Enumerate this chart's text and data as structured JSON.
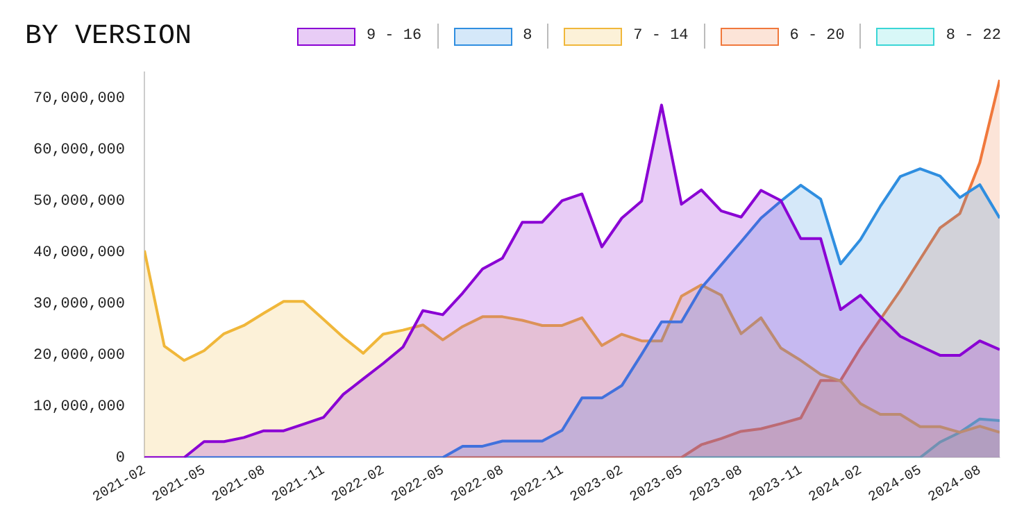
{
  "chart_data": {
    "type": "area",
    "title": "BY VERSION",
    "x": [
      "2021-02",
      "2021-03",
      "2021-04",
      "2021-05",
      "2021-06",
      "2021-07",
      "2021-08",
      "2021-09",
      "2021-10",
      "2021-11",
      "2021-12",
      "2022-01",
      "2022-02",
      "2022-03",
      "2022-04",
      "2022-05",
      "2022-06",
      "2022-07",
      "2022-08",
      "2022-09",
      "2022-10",
      "2022-11",
      "2022-12",
      "2023-01",
      "2023-02",
      "2023-03",
      "2023-04",
      "2023-05",
      "2023-06",
      "2023-07",
      "2023-08",
      "2023-09",
      "2023-10",
      "2023-11",
      "2023-12",
      "2024-01",
      "2024-02",
      "2024-03",
      "2024-04",
      "2024-05",
      "2024-06",
      "2024-07",
      "2024-08",
      "2024-09"
    ],
    "series": [
      {
        "name": "9 - 16",
        "color": "#8a00d4",
        "values": [
          0,
          0,
          0,
          3100000,
          3100000,
          3900000,
          5200000,
          5200000,
          6500000,
          7800000,
          12300000,
          15300000,
          18300000,
          21500000,
          28600000,
          27800000,
          32000000,
          36700000,
          38800000,
          45800000,
          45800000,
          50000000,
          51300000,
          41000000,
          46600000,
          49900000,
          68600000,
          49300000,
          52100000,
          48000000,
          46800000,
          52000000,
          50000000,
          42600000,
          42600000,
          28800000,
          31600000,
          27400000,
          23600000,
          21700000,
          19900000,
          19900000,
          22700000,
          21000000
        ]
      },
      {
        "name": "8",
        "color": "#2f8ee0",
        "values": [
          null,
          null,
          0,
          0,
          0,
          0,
          0,
          0,
          0,
          0,
          0,
          0,
          0,
          0,
          0,
          0,
          2200000,
          2200000,
          3200000,
          3200000,
          3200000,
          5300000,
          11600000,
          11600000,
          14000000,
          20100000,
          26400000,
          26400000,
          33000000,
          37500000,
          42000000,
          46600000,
          49900000,
          53000000,
          50300000,
          37700000,
          42400000,
          48900000,
          54700000,
          56200000,
          54800000,
          50600000,
          53100000,
          46600000
        ]
      },
      {
        "name": "7 - 14",
        "color": "#f0b73a",
        "values": [
          40300000,
          21700000,
          18900000,
          20800000,
          24100000,
          25700000,
          28100000,
          30400000,
          30400000,
          26900000,
          23400000,
          20300000,
          24000000,
          24800000,
          25800000,
          22900000,
          25500000,
          27400000,
          27400000,
          26700000,
          25700000,
          25700000,
          27200000,
          21800000,
          24000000,
          22700000,
          22700000,
          31400000,
          33600000,
          31600000,
          24100000,
          27200000,
          21300000,
          18900000,
          16200000,
          14900000,
          10500000,
          8400000,
          8400000,
          6000000,
          6000000,
          4900000,
          6100000,
          4900000
        ]
      },
      {
        "name": "6 - 20",
        "color": "#f0783c",
        "values": [
          null,
          null,
          null,
          null,
          null,
          null,
          null,
          null,
          null,
          null,
          null,
          null,
          null,
          null,
          null,
          0,
          0,
          0,
          0,
          0,
          0,
          0,
          0,
          0,
          0,
          0,
          0,
          0,
          2500000,
          3700000,
          5100000,
          5600000,
          6600000,
          7700000,
          15000000,
          15000000,
          21300000,
          26900000,
          32500000,
          38600000,
          44700000,
          47500000,
          57400000,
          73500000
        ]
      },
      {
        "name": "8 - 22",
        "color": "#3ad6d6",
        "values": [
          null,
          null,
          null,
          null,
          null,
          null,
          null,
          null,
          null,
          null,
          null,
          null,
          null,
          null,
          null,
          null,
          null,
          null,
          null,
          null,
          null,
          null,
          null,
          null,
          null,
          null,
          null,
          0,
          0,
          0,
          0,
          0,
          0,
          0,
          0,
          0,
          0,
          0,
          0,
          0,
          3000000,
          4900000,
          7500000,
          7200000
        ]
      }
    ],
    "xlim": [
      "2021-02",
      "2024-09"
    ],
    "xticks": [
      "2021-02",
      "2021-05",
      "2021-08",
      "2021-11",
      "2022-02",
      "2022-05",
      "2022-08",
      "2022-11",
      "2023-02",
      "2023-05",
      "2023-08",
      "2023-11",
      "2024-02",
      "2024-05",
      "2024-08"
    ],
    "ylim": [
      0,
      75000000
    ],
    "yticks": [
      {
        "value": 0,
        "label": "0"
      },
      {
        "value": 10000000,
        "label": "10,000,000"
      },
      {
        "value": 20000000,
        "label": "20,000,000"
      },
      {
        "value": 30000000,
        "label": "30,000,000"
      },
      {
        "value": 40000000,
        "label": "40,000,000"
      },
      {
        "value": 50000000,
        "label": "50,000,000"
      },
      {
        "value": 60000000,
        "label": "60,000,000"
      },
      {
        "value": 70000000,
        "label": "70,000,000"
      }
    ],
    "grid": false,
    "legend": "top right",
    "marker": "none",
    "line_style": "solid"
  }
}
